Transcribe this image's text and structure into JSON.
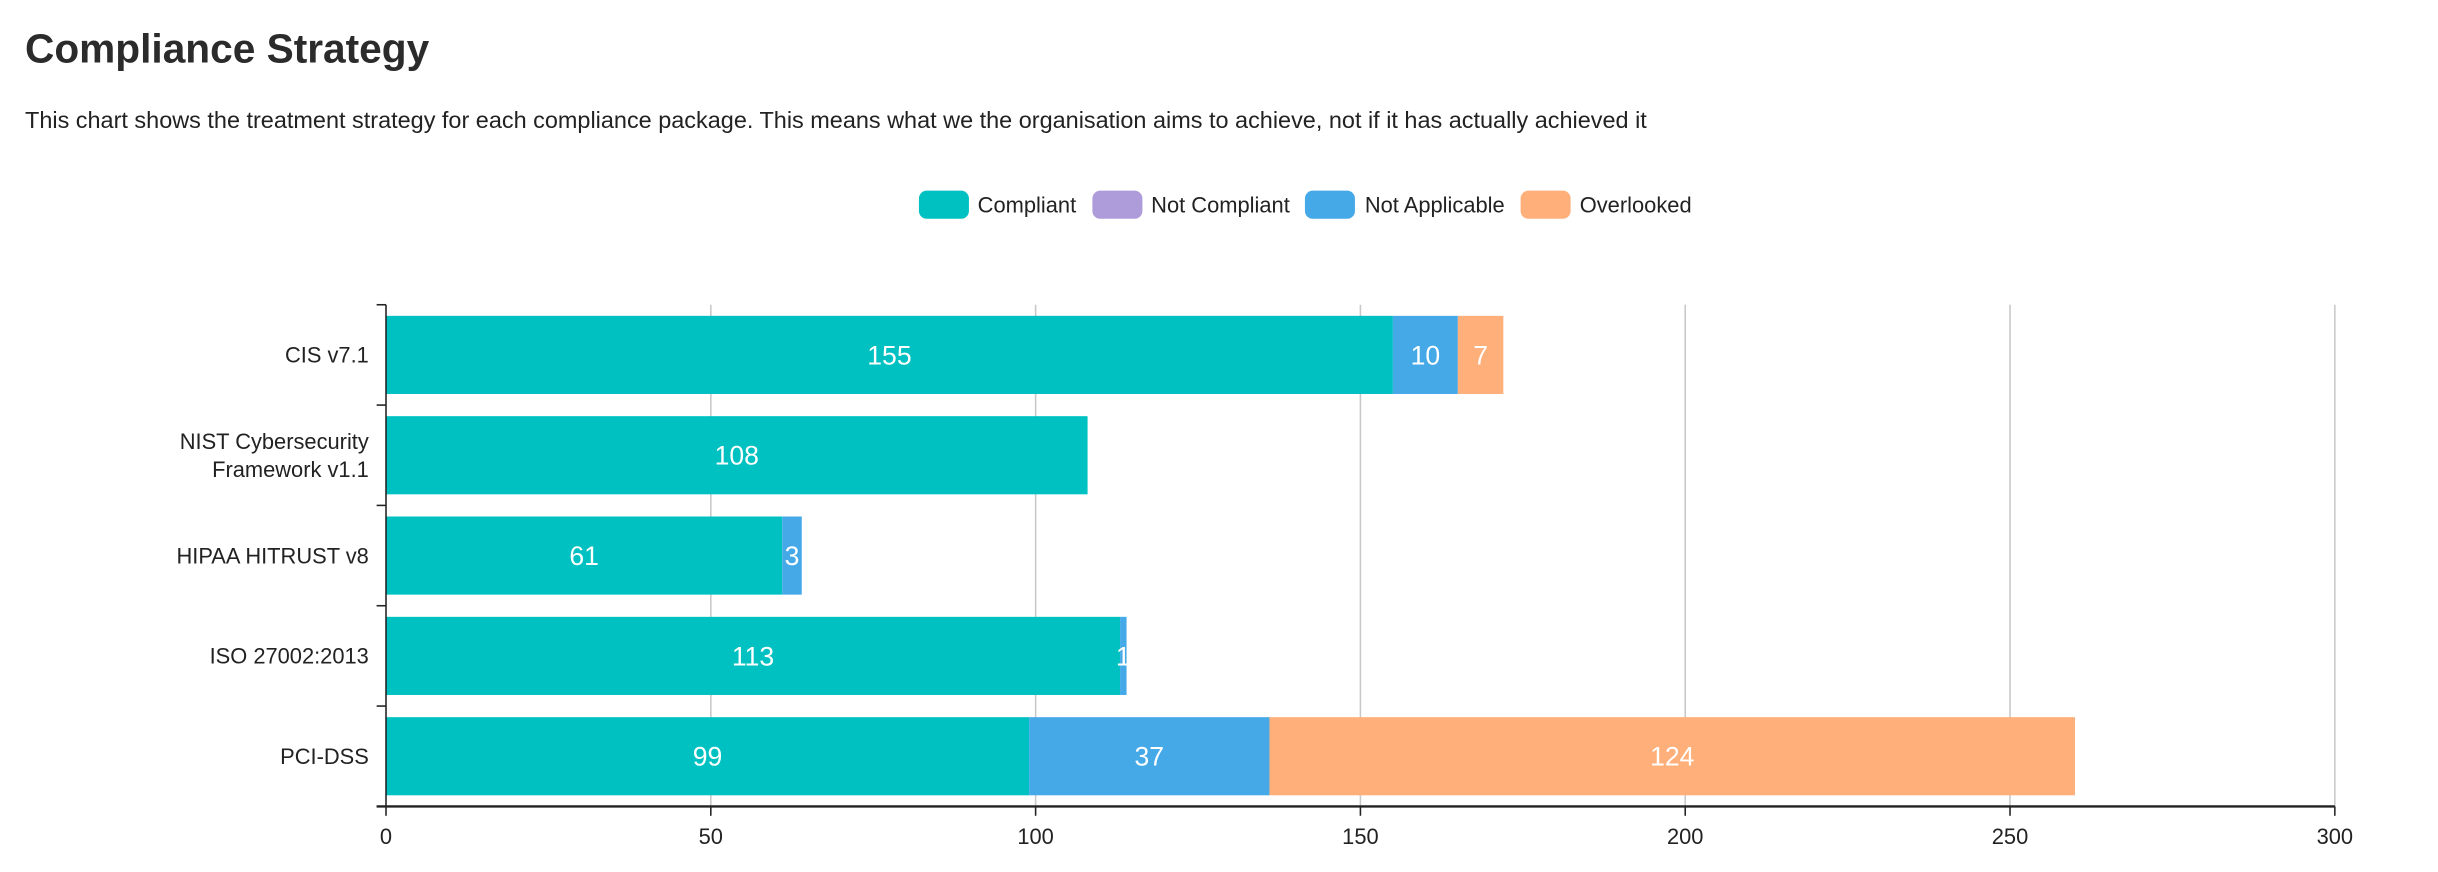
{
  "header": {
    "title": "Compliance Strategy",
    "subtitle": "This chart shows the treatment strategy for each compliance package. This means what we the organisation aims to achieve, not if it has actually achieved it"
  },
  "chart_data": {
    "type": "bar",
    "orientation": "horizontal",
    "stacked": true,
    "categories": [
      [
        "CIS v7.1"
      ],
      [
        "NIST Cybersecurity",
        "Framework v1.1"
      ],
      [
        "HIPAA HITRUST v8"
      ],
      [
        "ISO 27002:2013"
      ],
      [
        "PCI-DSS"
      ]
    ],
    "series": [
      {
        "name": "Compliant",
        "color": "#00C1C1",
        "values": [
          155,
          108,
          61,
          113,
          99
        ]
      },
      {
        "name": "Not Compliant",
        "color": "#AE9BDA",
        "values": [
          0,
          0,
          0,
          0,
          0
        ]
      },
      {
        "name": "Not Applicable",
        "color": "#45A9E8",
        "values": [
          10,
          0,
          3,
          1,
          37
        ]
      },
      {
        "name": "Overlooked",
        "color": "#FFAF7A",
        "values": [
          7,
          0,
          0,
          0,
          124
        ]
      }
    ],
    "xlim": [
      0,
      300
    ],
    "xticks": [
      0,
      50,
      100,
      150,
      200,
      250,
      300
    ],
    "grid": true,
    "legend": "top-center",
    "data_labels": true
  }
}
